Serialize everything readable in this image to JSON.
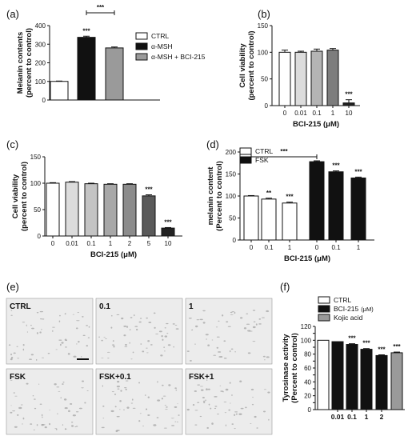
{
  "chart_data": [
    {
      "panel": "(a)",
      "type": "bar",
      "categories": [
        "CTRL",
        "α-MSH",
        "α-MSH + BCI-215"
      ],
      "values": [
        100,
        337,
        280
      ],
      "errors": [
        2,
        6,
        5
      ],
      "colors": [
        "#ffffff",
        "#111111",
        "#9a9a9a"
      ],
      "ylabel_lines": [
        "Melanin contents",
        "(percent to control)"
      ],
      "ylim": [
        0,
        400
      ],
      "yticks": [
        0,
        100,
        200,
        300,
        400
      ],
      "legend": [
        "CTRL",
        "α-MSH",
        "α-MSH + BCI-215"
      ],
      "legend_position": "right",
      "annotations": [
        {
          "bar": 1,
          "text": "***"
        }
      ],
      "brackets": [
        {
          "from": 1,
          "to": 2,
          "text": "***"
        }
      ]
    },
    {
      "panel": "(b)",
      "type": "bar",
      "categories": [
        "0",
        "0.01",
        "0.1",
        "1",
        "10"
      ],
      "values": [
        100,
        100,
        102,
        104,
        5
      ],
      "errors": [
        4,
        2,
        4,
        3,
        6
      ],
      "colors": [
        "#ffffff",
        "#dcdcdc",
        "#b4b4b4",
        "#7d7d7d",
        "#222222"
      ],
      "xlabel": "BCI-215 (μM)",
      "ylabel_lines": [
        "Cell viability",
        "(percent to control)"
      ],
      "ylim": [
        0,
        150
      ],
      "yticks": [
        0,
        50,
        100,
        150
      ],
      "annotations": [
        {
          "bar": 4,
          "text": "***"
        }
      ]
    },
    {
      "panel": "(c)",
      "type": "bar",
      "categories": [
        "0",
        "0.01",
        "0.1",
        "1",
        "2",
        "5",
        "10"
      ],
      "values": [
        100,
        102,
        99,
        98,
        98,
        76,
        15
      ],
      "errors": [
        1,
        1,
        1,
        1,
        1,
        2,
        1
      ],
      "colors": [
        "#ffffff",
        "#dcdcdc",
        "#c4c4c4",
        "#a8a8a8",
        "#8c8c8c",
        "#5a5a5a",
        "#222222"
      ],
      "xlabel": "BCI-215 (μM)",
      "ylabel_lines": [
        "Cell viability",
        "(percent to control)"
      ],
      "ylim": [
        0,
        150
      ],
      "yticks": [
        0,
        50,
        100,
        150
      ],
      "annotations": [
        {
          "bar": 5,
          "text": "***"
        },
        {
          "bar": 6,
          "text": "***"
        }
      ]
    },
    {
      "panel": "(d)",
      "type": "bar",
      "categories": [
        "0",
        "0.1",
        "1",
        "0",
        "0.1",
        "1"
      ],
      "values": [
        100,
        93,
        84,
        178,
        155,
        141
      ],
      "errors": [
        1,
        2,
        2,
        2,
        2,
        2
      ],
      "colors": [
        "#ffffff",
        "#ffffff",
        "#ffffff",
        "#111111",
        "#111111",
        "#111111"
      ],
      "xlabel": "BCI-215 (μM)",
      "ylabel_lines": [
        "melanin content",
        "(Percent to control)"
      ],
      "ylim": [
        0,
        200
      ],
      "yticks": [
        0,
        50,
        100,
        150,
        200
      ],
      "legend": [
        "CTRL",
        "FSK"
      ],
      "legend_position": "top-left",
      "annotations": [
        {
          "bar": 1,
          "text": "**"
        },
        {
          "bar": 2,
          "text": "***"
        },
        {
          "bar": 4,
          "text": "***"
        },
        {
          "bar": 5,
          "text": "***"
        }
      ],
      "brackets": [
        {
          "from": 0,
          "to": 3,
          "text": "***"
        }
      ]
    },
    {
      "panel": "(f)",
      "type": "bar",
      "categories": [
        "",
        "0.01",
        "0.1",
        "1",
        "2",
        ""
      ],
      "values": [
        100,
        98,
        94,
        87,
        78,
        82
      ],
      "errors": [
        0,
        0,
        1,
        1,
        1,
        1
      ],
      "colors": [
        "#ffffff",
        "#111111",
        "#111111",
        "#111111",
        "#111111",
        "#9a9a9a"
      ],
      "ylabel_lines": [
        "Tyrosinase activity",
        "(Percent to control)"
      ],
      "ylim": [
        0,
        120
      ],
      "yticks": [
        0,
        10,
        20,
        30,
        40,
        50,
        60,
        70,
        80,
        90,
        100,
        110,
        120
      ],
      "legend": [
        "CTRL",
        "BCI-215",
        "Kojic acid"
      ],
      "legend_unit": "(μM)",
      "legend_position": "top",
      "annotations": [
        {
          "bar": 2,
          "text": "***"
        },
        {
          "bar": 3,
          "text": "***"
        },
        {
          "bar": 4,
          "text": "***"
        },
        {
          "bar": 5,
          "text": "***"
        }
      ]
    }
  ],
  "micrographs": {
    "panel": "(e)",
    "labels": [
      "CTRL",
      "0.1",
      "1",
      "FSK",
      "FSK+0.1",
      "FSK+1"
    ]
  },
  "panel_labels": {
    "a": "(a)",
    "b": "(b)",
    "c": "(c)",
    "d": "(d)",
    "e": "(e)",
    "f": "(f)"
  }
}
